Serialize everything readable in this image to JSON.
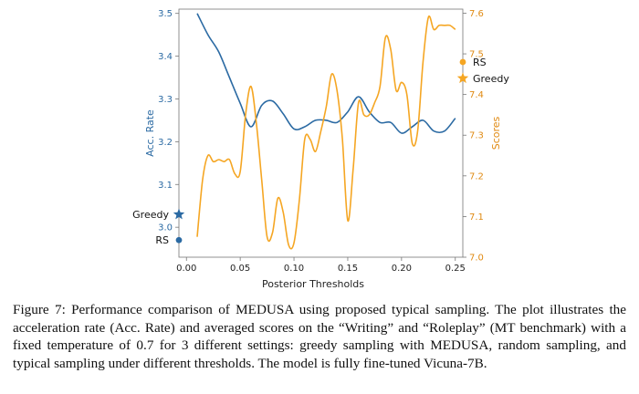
{
  "chart_data": {
    "type": "line",
    "xlabel": "Posterior Thresholds",
    "x_ticks": [
      "0.00",
      "0.05",
      "0.10",
      "0.15",
      "0.20",
      "0.25"
    ],
    "xlim": [
      -0.007,
      0.257
    ],
    "y_left": {
      "label": "Acc. Rate",
      "ticks": [
        "3.0",
        "3.1",
        "3.2",
        "3.3",
        "3.4",
        "3.5"
      ],
      "lim": [
        2.93,
        3.51
      ],
      "color": "#2b6aa3"
    },
    "y_right": {
      "label": "Scores",
      "ticks": [
        "7.0",
        "7.1",
        "7.2",
        "7.3",
        "7.4",
        "7.5",
        "7.6"
      ],
      "lim": [
        7.0,
        7.61
      ],
      "color": "#f5a623"
    },
    "series": [
      {
        "name": "Acc. Rate",
        "axis": "left",
        "color": "#2b6aa3",
        "x": [
          0.01,
          0.02,
          0.03,
          0.04,
          0.05,
          0.06,
          0.07,
          0.08,
          0.09,
          0.1,
          0.11,
          0.12,
          0.13,
          0.14,
          0.15,
          0.16,
          0.17,
          0.18,
          0.19,
          0.2,
          0.21,
          0.22,
          0.23,
          0.24,
          0.25
        ],
        "values": [
          3.5,
          3.45,
          3.41,
          3.35,
          3.29,
          3.235,
          3.285,
          3.295,
          3.265,
          3.23,
          3.235,
          3.25,
          3.25,
          3.245,
          3.27,
          3.305,
          3.27,
          3.245,
          3.245,
          3.22,
          3.235,
          3.25,
          3.225,
          3.225,
          3.255
        ]
      },
      {
        "name": "Scores",
        "axis": "right",
        "color": "#f5a623",
        "x": [
          0.01,
          0.015,
          0.02,
          0.025,
          0.03,
          0.035,
          0.04,
          0.045,
          0.05,
          0.055,
          0.06,
          0.065,
          0.07,
          0.075,
          0.08,
          0.085,
          0.09,
          0.095,
          0.1,
          0.105,
          0.11,
          0.115,
          0.12,
          0.125,
          0.13,
          0.135,
          0.14,
          0.145,
          0.15,
          0.155,
          0.16,
          0.165,
          0.17,
          0.175,
          0.18,
          0.185,
          0.19,
          0.195,
          0.2,
          0.205,
          0.21,
          0.215,
          0.22,
          0.225,
          0.23,
          0.235,
          0.24,
          0.245,
          0.25
        ],
        "values": [
          7.05,
          7.19,
          7.25,
          7.235,
          7.24,
          7.235,
          7.24,
          7.205,
          7.21,
          7.35,
          7.42,
          7.33,
          7.19,
          7.05,
          7.06,
          7.145,
          7.11,
          7.03,
          7.035,
          7.14,
          7.29,
          7.29,
          7.26,
          7.31,
          7.37,
          7.45,
          7.41,
          7.29,
          7.09,
          7.215,
          7.38,
          7.35,
          7.35,
          7.38,
          7.42,
          7.54,
          7.51,
          7.41,
          7.43,
          7.4,
          7.28,
          7.31,
          7.48,
          7.59,
          7.56,
          7.57,
          7.57,
          7.57,
          7.56
        ]
      }
    ],
    "annotations": [
      {
        "label": "Greedy",
        "axis": "left",
        "value": 3.03,
        "marker": "star",
        "color": "#2b6aa3"
      },
      {
        "label": "RS",
        "axis": "left",
        "value": 2.97,
        "marker": "circle",
        "color": "#2b6aa3"
      },
      {
        "label": "RS",
        "axis": "right",
        "value": 7.48,
        "marker": "circle",
        "color": "#f5a623"
      },
      {
        "label": "Greedy",
        "axis": "right",
        "value": 7.44,
        "marker": "star",
        "color": "#f5a623"
      }
    ]
  },
  "caption": "Figure 7: Performance comparison of MEDUSA using proposed typical sampling. The plot illustrates the acceleration rate (Acc. Rate) and averaged scores on the “Writing” and “Roleplay” (MT benchmark) with a fixed temperature of 0.7 for 3 different settings: greedy sampling with MEDUSA, random sampling, and typical sampling under different thresholds. The model is fully fine-tuned Vicuna-7B."
}
